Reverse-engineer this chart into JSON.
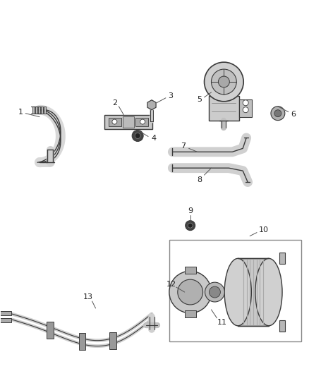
{
  "bg_color": "#ffffff",
  "line_color": "#3a3a3a",
  "fig_width": 4.38,
  "fig_height": 5.33,
  "dpi": 100
}
